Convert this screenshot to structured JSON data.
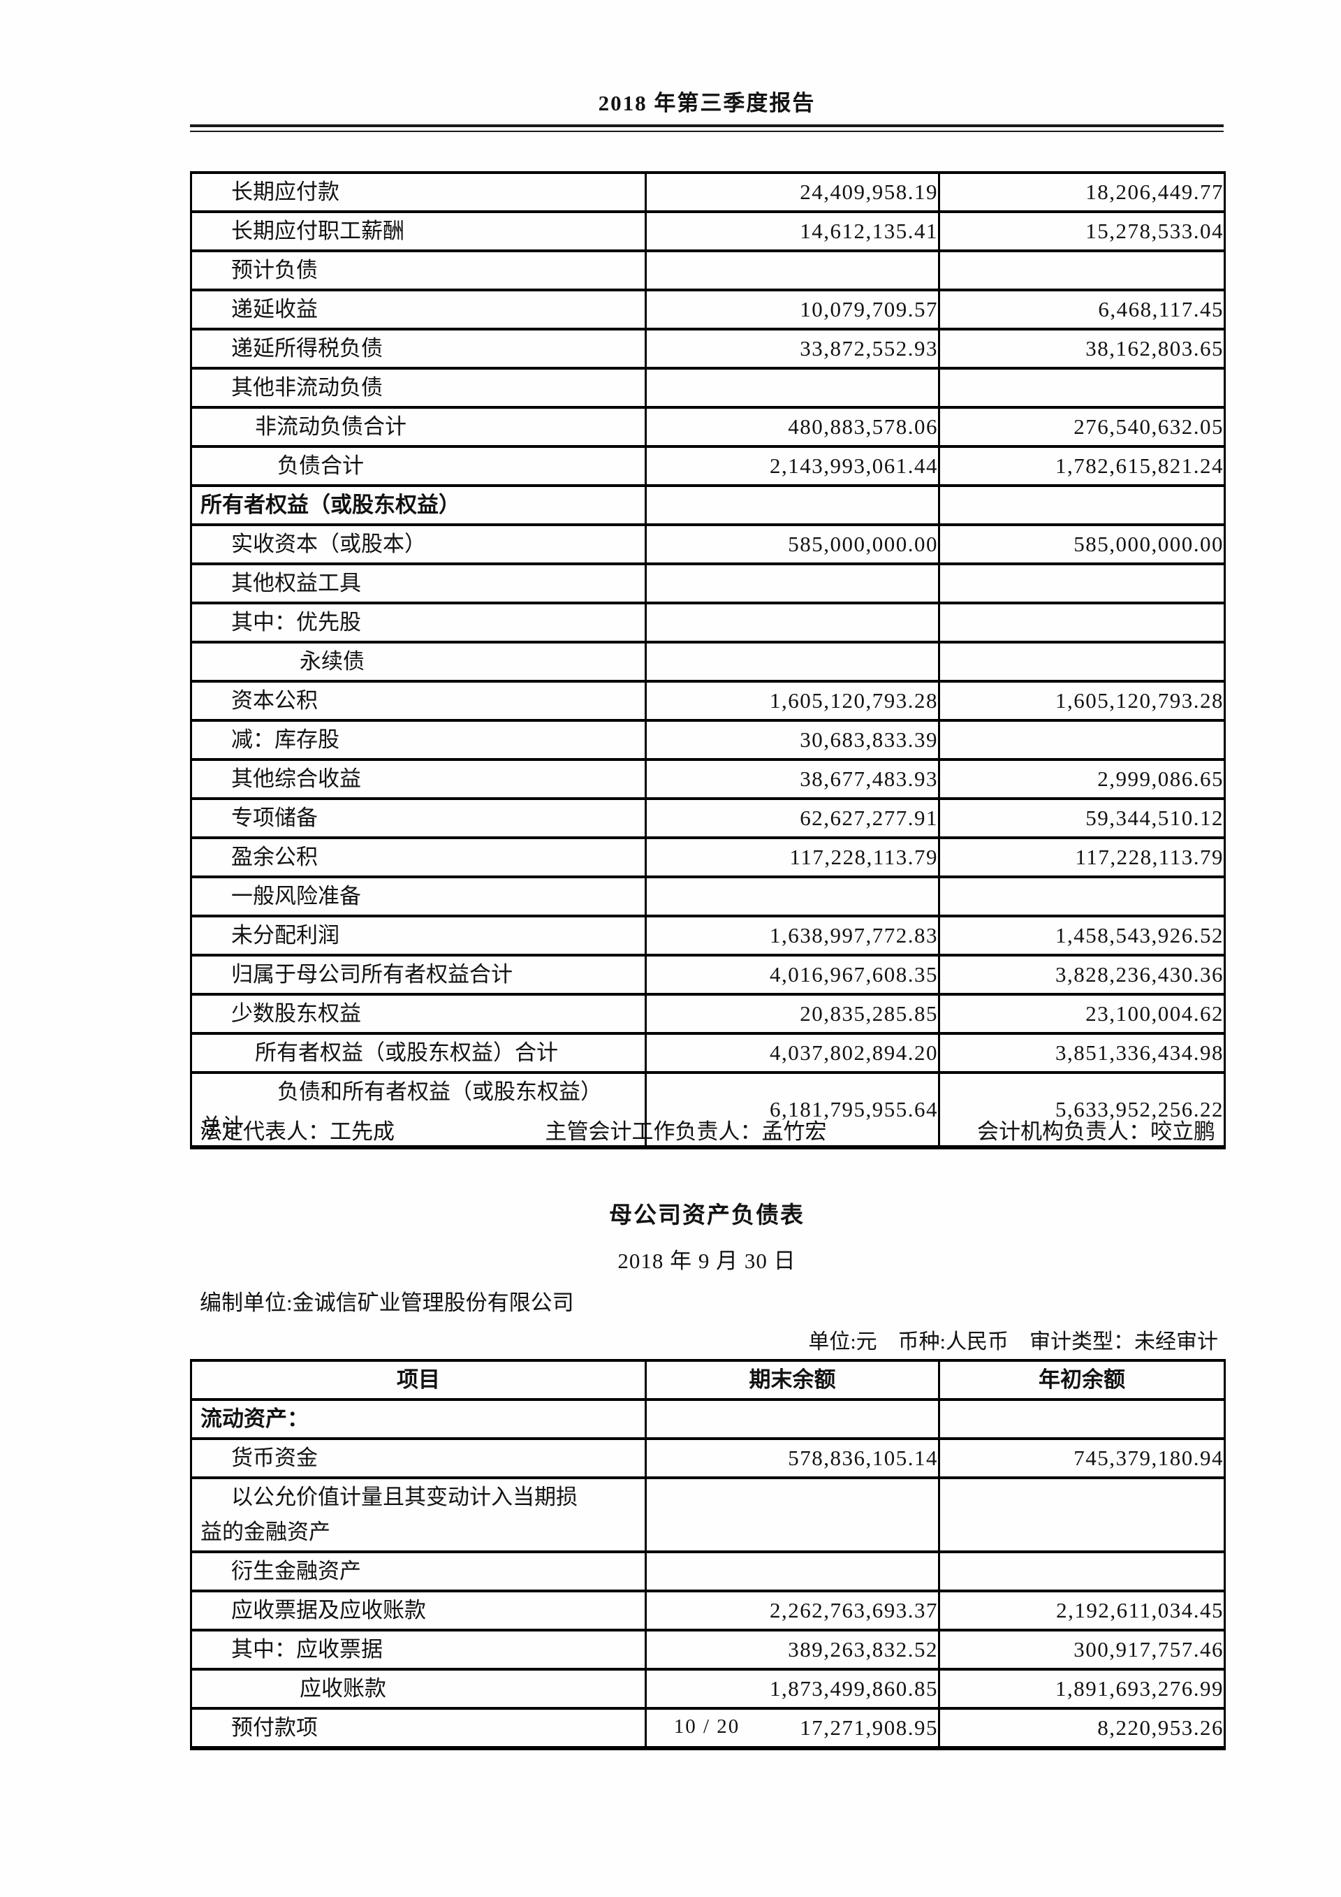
{
  "page": {
    "header_title": "2018 年第三季度报告",
    "page_number": "10 / 20"
  },
  "balance_sheet_continued": {
    "columns": {
      "end_of_period": "期末余额",
      "beginning_of_year": "年初余额"
    },
    "rows": [
      {
        "label": "长期应付款",
        "indent": 1,
        "end": "24,409,958.19",
        "begin": "18,206,449.77"
      },
      {
        "label": "长期应付职工薪酬",
        "indent": 1,
        "end": "14,612,135.41",
        "begin": "15,278,533.04"
      },
      {
        "label": "预计负债",
        "indent": 1,
        "end": "",
        "begin": ""
      },
      {
        "label": "递延收益",
        "indent": 1,
        "end": "10,079,709.57",
        "begin": "6,468,117.45"
      },
      {
        "label": "递延所得税负债",
        "indent": 1,
        "end": "33,872,552.93",
        "begin": "38,162,803.65"
      },
      {
        "label": "其他非流动负债",
        "indent": 1,
        "end": "",
        "begin": ""
      },
      {
        "label": "非流动负债合计",
        "indent": 2,
        "end": "480,883,578.06",
        "begin": "276,540,632.05"
      },
      {
        "label": "负债合计",
        "indent": 3,
        "end": "2,143,993,061.44",
        "begin": "1,782,615,821.24"
      },
      {
        "label": "所有者权益（或股东权益）",
        "indent": 0,
        "bold": true,
        "end": "",
        "begin": ""
      },
      {
        "label": "实收资本（或股本）",
        "indent": 1,
        "end": "585,000,000.00",
        "begin": "585,000,000.00"
      },
      {
        "label": "其他权益工具",
        "indent": 1,
        "end": "",
        "begin": ""
      },
      {
        "label": "其中：优先股",
        "indent": 1,
        "end": "",
        "begin": ""
      },
      {
        "label": "永续债",
        "indent": 4,
        "end": "",
        "begin": ""
      },
      {
        "label": "资本公积",
        "indent": 1,
        "end": "1,605,120,793.28",
        "begin": "1,605,120,793.28"
      },
      {
        "label": "减：库存股",
        "indent": 1,
        "end": "30,683,833.39",
        "begin": ""
      },
      {
        "label": "其他综合收益",
        "indent": 1,
        "end": "38,677,483.93",
        "begin": "2,999,086.65"
      },
      {
        "label": "专项储备",
        "indent": 1,
        "end": "62,627,277.91",
        "begin": "59,344,510.12"
      },
      {
        "label": "盈余公积",
        "indent": 1,
        "end": "117,228,113.79",
        "begin": "117,228,113.79"
      },
      {
        "label": "一般风险准备",
        "indent": 1,
        "end": "",
        "begin": ""
      },
      {
        "label": "未分配利润",
        "indent": 1,
        "end": "1,638,997,772.83",
        "begin": "1,458,543,926.52"
      },
      {
        "label": "归属于母公司所有者权益合计",
        "indent": 1,
        "end": "4,016,967,608.35",
        "begin": "3,828,236,430.36"
      },
      {
        "label": "少数股东权益",
        "indent": 1,
        "end": "20,835,285.85",
        "begin": "23,100,004.62"
      },
      {
        "label": "所有者权益（或股东权益）合计",
        "indent": 2,
        "end": "4,037,802,894.20",
        "begin": "3,851,336,434.98"
      },
      {
        "label": "负债和所有者权益（或股东权益）\n总计",
        "indent": 3,
        "hang": true,
        "end": "6,181,795,955.64",
        "begin": "5,633,952,256.22"
      }
    ]
  },
  "signatures": {
    "legal_representative": "法定代表人：工先成",
    "chief_accounting_officer": "主管会计工作负责人：孟竹宏",
    "accounting_dept_head": "会计机构负责人：咬立鹏"
  },
  "parent_balance_sheet": {
    "title": "母公司资产负债表",
    "date": "2018 年 9 月 30 日",
    "prepared_by": "编制单位:金诚信矿业管理股份有限公司",
    "meta": "单位:元　币种:人民币　审计类型：未经审计",
    "headers": [
      "项目",
      "期末余额",
      "年初余额"
    ],
    "rows": [
      {
        "label": "流动资产：",
        "indent": 0,
        "bold": true,
        "end": "",
        "begin": ""
      },
      {
        "label": "货币资金",
        "indent": 1,
        "end": "578,836,105.14",
        "begin": "745,379,180.94"
      },
      {
        "label": "以公允价值计量且其变动计入当期损\n益的金融资产",
        "indent": 1,
        "hang": true,
        "end": "",
        "begin": ""
      },
      {
        "label": "衍生金融资产",
        "indent": 1,
        "end": "",
        "begin": ""
      },
      {
        "label": "应收票据及应收账款",
        "indent": 1,
        "end": "2,262,763,693.37",
        "begin": "2,192,611,034.45"
      },
      {
        "label": "其中：应收票据",
        "indent": 1,
        "end": "389,263,832.52",
        "begin": "300,917,757.46"
      },
      {
        "label": "应收账款",
        "indent": 4,
        "end": "1,873,499,860.85",
        "begin": "1,891,693,276.99"
      },
      {
        "label": "预付款项",
        "indent": 1,
        "end": "17,271,908.95",
        "begin": "8,220,953.26"
      }
    ]
  }
}
